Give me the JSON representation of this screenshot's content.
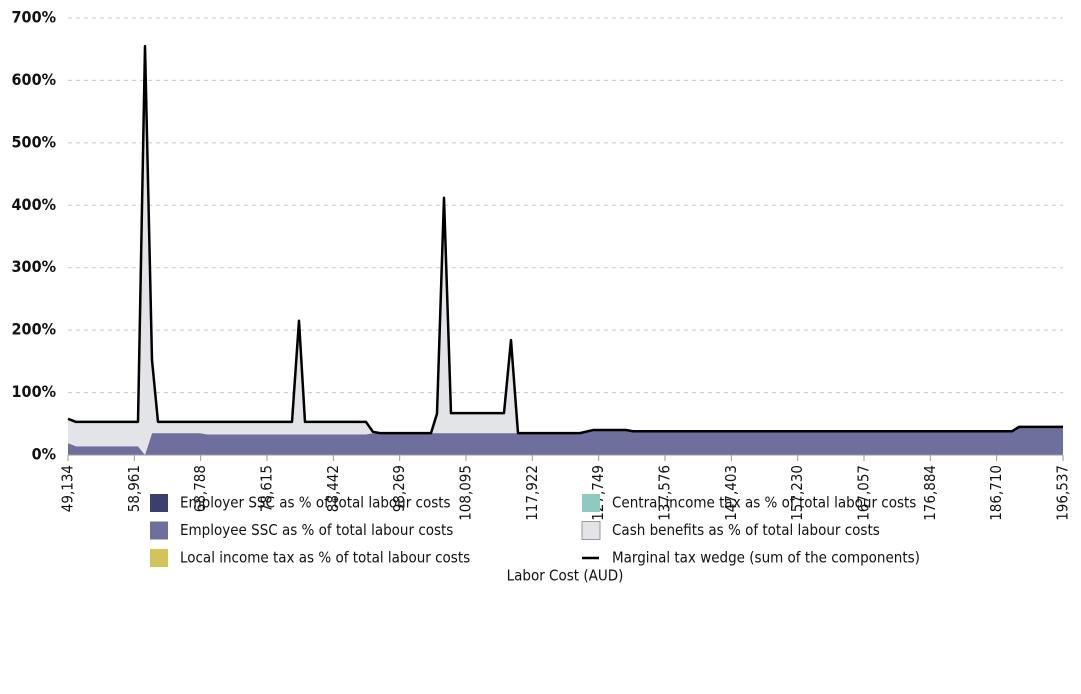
{
  "chart_data": {
    "type": "area",
    "stacked": true,
    "x_label": "Labor Cost (AUD)",
    "x": [
      49134,
      50319,
      59504,
      60541,
      61578,
      62467,
      68688,
      69725,
      82317,
      83354,
      84243,
      93280,
      94317,
      95354,
      102909,
      103798,
      104835,
      105872,
      113723,
      114760,
      115797,
      124981,
      126907,
      131796,
      132833,
      188979,
      190016,
      196537
    ],
    "series": [
      {
        "name": "Employer SSC as % of total labour costs",
        "type": "area",
        "color": "#3b3f6e",
        "values": [
          0,
          0,
          0,
          0,
          0,
          0,
          0,
          0,
          0,
          0,
          0,
          0,
          0,
          0,
          0,
          0,
          0,
          0,
          0,
          0,
          0,
          0,
          0,
          0,
          0,
          0,
          0,
          0
        ]
      },
      {
        "name": "Employee SSC as % of total labour costs",
        "type": "area",
        "color": "#6f6f9e",
        "values": [
          19,
          14,
          14,
          0,
          35,
          35,
          35,
          33,
          33,
          33,
          33,
          33,
          35,
          35,
          35,
          35,
          35,
          35,
          35,
          35,
          35,
          35,
          40,
          40,
          38,
          38,
          45,
          45
        ]
      },
      {
        "name": "Local income tax as % of total labour costs",
        "type": "area",
        "color": "#d4c35a",
        "values": [
          0,
          0,
          0,
          0,
          0,
          0,
          0,
          0,
          0,
          0,
          0,
          0,
          0,
          0,
          0,
          0,
          0,
          0,
          0,
          0,
          0,
          0,
          0,
          0,
          0,
          0,
          0,
          0
        ]
      },
      {
        "name": "Central income tax as % of total labour costs",
        "type": "area",
        "color": "#8fcac0",
        "values": [
          0,
          0,
          0,
          0,
          0,
          0,
          0,
          0,
          0,
          0,
          0,
          0,
          0,
          0,
          0,
          0,
          0,
          0,
          0,
          0,
          0,
          0,
          0,
          0,
          0,
          0,
          0,
          0
        ]
      },
      {
        "name": "Cash benefits as % of total labour costs",
        "type": "area",
        "color": "#e3e4e7",
        "values": [
          39,
          39,
          39,
          655,
          117,
          18,
          18,
          20,
          20,
          182,
          20,
          20,
          2,
          0,
          0,
          31,
          377,
          32,
          32,
          149,
          0,
          0,
          0,
          0,
          0,
          0,
          0,
          0
        ]
      },
      {
        "name": "Marginal tax wedge (sum of the components)",
        "type": "line",
        "color": "#000000",
        "values": [
          58,
          53,
          53,
          655,
          152,
          53,
          53,
          53,
          53,
          215,
          53,
          53,
          37,
          35,
          35,
          66,
          412,
          67,
          67,
          184,
          35,
          35,
          40,
          40,
          38,
          38,
          45,
          45
        ]
      }
    ],
    "xlim": [
      49134,
      196537
    ],
    "xticks": [
      {
        "value": 49134,
        "label": "49,134"
      },
      {
        "value": 58961,
        "label": "58,961"
      },
      {
        "value": 68788,
        "label": "68,788"
      },
      {
        "value": 78615,
        "label": "78,615"
      },
      {
        "value": 88442,
        "label": "88,442"
      },
      {
        "value": 98269,
        "label": "98,269"
      },
      {
        "value": 108095,
        "label": "108,095"
      },
      {
        "value": 117922,
        "label": "117,922"
      },
      {
        "value": 127749,
        "label": "127,749"
      },
      {
        "value": 137576,
        "label": "137,576"
      },
      {
        "value": 147403,
        "label": "147,403"
      },
      {
        "value": 157230,
        "label": "157,230"
      },
      {
        "value": 167057,
        "label": "167,057"
      },
      {
        "value": 176884,
        "label": "176,884"
      },
      {
        "value": 186710,
        "label": "186,710"
      },
      {
        "value": 196537,
        "label": "196,537"
      }
    ],
    "ylim": [
      0,
      700
    ],
    "yticks": [
      {
        "value": 0,
        "label": "0%"
      },
      {
        "value": 100,
        "label": "100%"
      },
      {
        "value": 200,
        "label": "200%"
      },
      {
        "value": 300,
        "label": "300%"
      },
      {
        "value": 400,
        "label": "400%"
      },
      {
        "value": 500,
        "label": "500%"
      },
      {
        "value": 600,
        "label": "600%"
      },
      {
        "value": 700,
        "label": "700%"
      }
    ],
    "grid": true
  }
}
